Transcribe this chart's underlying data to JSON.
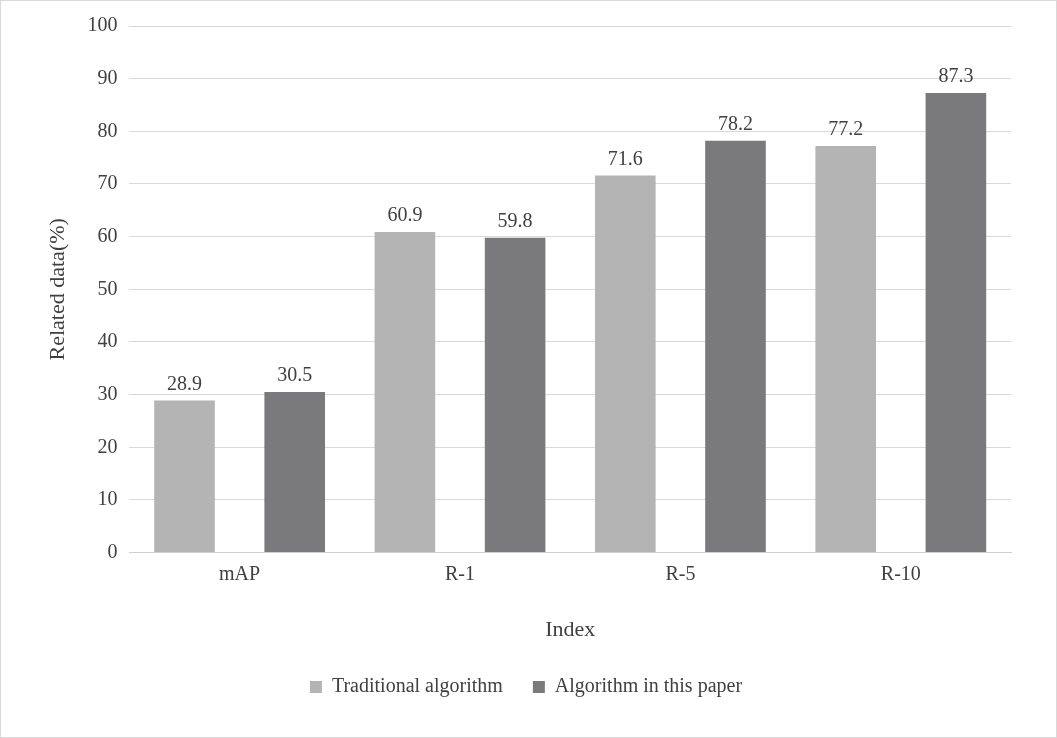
{
  "chart_data": {
    "type": "bar",
    "xlabel": "Index",
    "ylabel": "Related data(%)",
    "categories": [
      "mAP",
      "R-1",
      "R-5",
      "R-10"
    ],
    "series": [
      {
        "name": "Traditional algorithm",
        "color": "#b4b4b4",
        "values": [
          28.9,
          60.9,
          71.6,
          77.2
        ]
      },
      {
        "name": "Algorithm in this paper",
        "color": "#7a7a7c",
        "values": [
          30.5,
          59.8,
          78.2,
          87.3
        ]
      }
    ],
    "ylim": [
      0,
      100
    ],
    "yticks": [
      0,
      10,
      20,
      30,
      40,
      50,
      60,
      70,
      80,
      90,
      100
    ],
    "grid": "y",
    "legend": "bottom",
    "data_labels": true
  }
}
